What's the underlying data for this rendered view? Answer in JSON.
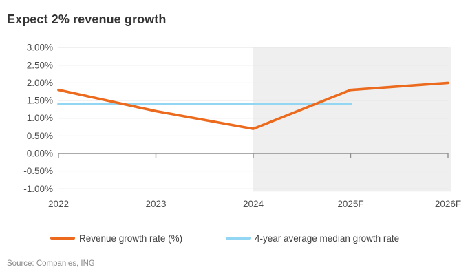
{
  "title": "Expect 2% revenue growth",
  "source": "Source: Companies, ING",
  "colors": {
    "revenue_line": "#EC6A1E",
    "average_line": "#92D6F4",
    "forecast_shading": "#EFEFEF",
    "gridline": "#E6E6E6",
    "axis": "#8F8F8F",
    "title_text": "#333333",
    "tick_text": "#4d4d4d",
    "legend_text": "#414141",
    "source_text": "#8a8a8a"
  },
  "chart_data": {
    "type": "line",
    "title": "Expect 2% revenue growth",
    "xlabel": "",
    "ylabel": "",
    "categories": [
      "2022",
      "2023",
      "2024",
      "2025F",
      "2026F"
    ],
    "series": [
      {
        "name": "Revenue growth rate (%)",
        "color": "#EC6A1E",
        "values": [
          1.8,
          1.2,
          0.7,
          1.8,
          2.0
        ]
      },
      {
        "name": "4-year average median growth rate",
        "color": "#92D6F4",
        "values": [
          1.4,
          1.4,
          1.4,
          1.4,
          null
        ]
      }
    ],
    "ylim": [
      -1.0,
      3.0
    ],
    "yticks": [
      3.0,
      2.5,
      2.0,
      1.5,
      1.0,
      0.5,
      0.0,
      -0.5,
      -1.0
    ],
    "ytick_labels": [
      "3.00%",
      "2.50%",
      "2.00%",
      "1.50%",
      "1.00%",
      "0.50%",
      "0.00%",
      "-0.50%",
      "-1.00%"
    ],
    "grid": true,
    "legend_position": "bottom",
    "forecast_region": {
      "start_category": "2024",
      "fill": "#EFEFEF"
    },
    "axis_color": "#8F8F8F",
    "grid_color": "#E6E6E6"
  }
}
